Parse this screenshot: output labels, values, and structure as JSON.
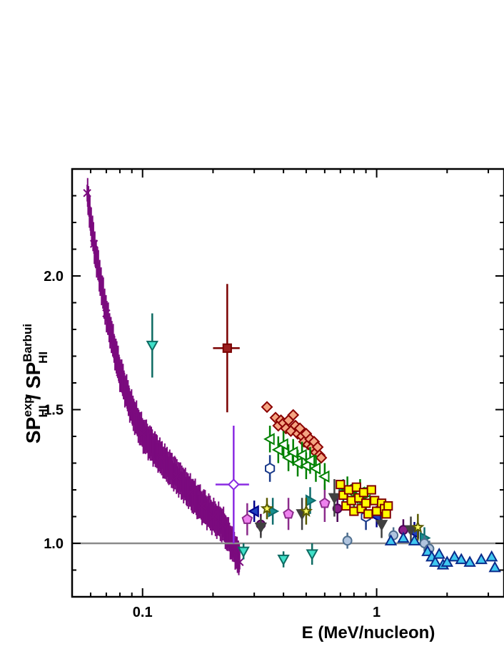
{
  "chart_data": {
    "type": "scatter",
    "x_scale": "log",
    "xlim": [
      0.05,
      3.5
    ],
    "ylim": [
      0.8,
      2.4
    ],
    "xlabel": "E (MeV/nucleon)",
    "ylabel": {
      "main": "SP",
      "num_sup": "exp",
      "num_sub": "HI",
      "sep": " / ",
      "den_main": "SP",
      "den_sup": "Barbui",
      "den_sub": "HI"
    },
    "x_ticks": [
      {
        "value": 0.1,
        "label": "0.1"
      },
      {
        "value": 1,
        "label": "1"
      }
    ],
    "y_ticks": [
      {
        "value": 1.0,
        "label": "1.0"
      },
      {
        "value": 1.5,
        "label": "1.5"
      },
      {
        "value": 2.0,
        "label": "2.0"
      }
    ],
    "reference_line": {
      "y": 1.0,
      "color": "#8a8a8a"
    },
    "dense_band": {
      "name": "cross-data",
      "color": "#7b0a7e",
      "marker": "x",
      "curve": [
        [
          0.058,
          2.31
        ],
        [
          0.062,
          2.12
        ],
        [
          0.07,
          1.86
        ],
        [
          0.08,
          1.64
        ],
        [
          0.09,
          1.5
        ],
        [
          0.1,
          1.41
        ],
        [
          0.12,
          1.32
        ],
        [
          0.14,
          1.25
        ],
        [
          0.16,
          1.19
        ],
        [
          0.18,
          1.14
        ],
        [
          0.2,
          1.1
        ],
        [
          0.22,
          1.07
        ],
        [
          0.25,
          0.97
        ],
        [
          0.26,
          0.93
        ]
      ],
      "err_half": 0.045
    },
    "series": [
      {
        "marker": "triangle-down",
        "color": "#0e6b63",
        "fill": "#3fe0c8",
        "points": [
          {
            "x": 0.11,
            "y": 1.74,
            "ey": 0.12
          },
          {
            "x": 0.27,
            "y": 0.97,
            "ey": 0.03
          },
          {
            "x": 0.4,
            "y": 0.94,
            "ey": 0.03
          },
          {
            "x": 0.53,
            "y": 0.96,
            "ey": 0.04
          }
        ]
      },
      {
        "marker": "square",
        "color": "#7a0000",
        "fill": "#9b1f1f",
        "points": [
          {
            "x": 0.23,
            "y": 1.73,
            "ey": 0.24,
            "ex": 0.03
          }
        ]
      },
      {
        "marker": "diamond",
        "color": "#8a2be2",
        "fill": "#ffffff",
        "points": [
          {
            "x": 0.245,
            "y": 1.22,
            "ey": 0.22,
            "ex": 0.04
          }
        ]
      },
      {
        "marker": "pentagon",
        "color": "#8b2b8b",
        "fill": "#ee82ee",
        "points": [
          {
            "x": 0.28,
            "y": 1.09,
            "ey": 0.06
          },
          {
            "x": 0.42,
            "y": 1.11,
            "ey": 0.06
          },
          {
            "x": 0.6,
            "y": 1.15,
            "ey": 0.07
          }
        ]
      },
      {
        "marker": "circle",
        "color": "#4d0058",
        "fill": "#8b1e8b",
        "points": [
          {
            "x": 0.32,
            "y": 1.07,
            "ey": 0.04
          },
          {
            "x": 0.68,
            "y": 1.13,
            "ey": 0.05
          },
          {
            "x": 1.3,
            "y": 1.05,
            "ey": 0.04
          }
        ]
      },
      {
        "marker": "hexagon",
        "color": "#1a3a8a",
        "fill": "#ffffff",
        "points": [
          {
            "x": 0.35,
            "y": 1.28,
            "ey": 0.05
          },
          {
            "x": 0.9,
            "y": 1.1,
            "ey": 0.05
          }
        ]
      },
      {
        "marker": "triangle-left",
        "color": "#00008b",
        "fill": "#1f3fbf",
        "points": [
          {
            "x": 0.3,
            "y": 1.12,
            "ey": 0.04
          },
          {
            "x": 1.0,
            "y": 1.1,
            "ey": 0.04
          },
          {
            "x": 1.45,
            "y": 1.04,
            "ey": 0.04
          }
        ]
      },
      {
        "marker": "triangle-down",
        "color": "#404040",
        "fill": "#404040",
        "points": [
          {
            "x": 0.32,
            "y": 1.06,
            "ey": 0.04
          },
          {
            "x": 0.48,
            "y": 1.11,
            "ey": 0.06
          },
          {
            "x": 0.66,
            "y": 1.17,
            "ey": 0.07
          },
          {
            "x": 1.05,
            "y": 1.07,
            "ey": 0.05
          },
          {
            "x": 1.4,
            "y": 1.05,
            "ey": 0.05
          }
        ]
      },
      {
        "marker": "triangle-right",
        "color": "#0d6b6b",
        "fill": "#168f8f",
        "points": [
          {
            "x": 0.36,
            "y": 1.12,
            "ey": 0.05
          },
          {
            "x": 0.52,
            "y": 1.16,
            "ey": 0.05
          },
          {
            "x": 0.72,
            "y": 1.19,
            "ey": 0.05
          },
          {
            "x": 1.6,
            "y": 1.02,
            "ey": 0.04
          }
        ]
      },
      {
        "marker": "star",
        "color": "#5a5a00",
        "fill": "#ffff66",
        "points": [
          {
            "x": 0.34,
            "y": 1.13,
            "ey": 0.04
          },
          {
            "x": 0.5,
            "y": 1.12,
            "ey": 0.05
          },
          {
            "x": 1.5,
            "y": 1.06,
            "ey": 0.05
          }
        ]
      },
      {
        "marker": "diamond",
        "color": "#8b0000",
        "fill": "#f4a582",
        "points": [
          {
            "x": 0.34,
            "y": 1.51
          },
          {
            "x": 0.37,
            "y": 1.47
          },
          {
            "x": 0.38,
            "y": 1.44
          },
          {
            "x": 0.39,
            "y": 1.46
          },
          {
            "x": 0.4,
            "y": 1.45
          },
          {
            "x": 0.41,
            "y": 1.43
          },
          {
            "x": 0.42,
            "y": 1.46
          },
          {
            "x": 0.43,
            "y": 1.42
          },
          {
            "x": 0.44,
            "y": 1.48
          },
          {
            "x": 0.45,
            "y": 1.44
          },
          {
            "x": 0.46,
            "y": 1.41
          },
          {
            "x": 0.47,
            "y": 1.43
          },
          {
            "x": 0.48,
            "y": 1.4
          },
          {
            "x": 0.49,
            "y": 1.38
          },
          {
            "x": 0.5,
            "y": 1.41
          },
          {
            "x": 0.51,
            "y": 1.37
          },
          {
            "x": 0.52,
            "y": 1.39
          },
          {
            "x": 0.53,
            "y": 1.36
          },
          {
            "x": 0.54,
            "y": 1.38
          },
          {
            "x": 0.55,
            "y": 1.34
          },
          {
            "x": 0.56,
            "y": 1.36
          },
          {
            "x": 0.57,
            "y": 1.33
          },
          {
            "x": 0.58,
            "y": 1.32
          }
        ]
      },
      {
        "marker": "triangle-left",
        "color": "#008000",
        "fill": "#ffffff",
        "points": [
          {
            "x": 0.35,
            "y": 1.39,
            "ey": 0.05
          },
          {
            "x": 0.38,
            "y": 1.35,
            "ey": 0.05
          },
          {
            "x": 0.4,
            "y": 1.37,
            "ey": 0.05
          },
          {
            "x": 0.42,
            "y": 1.32,
            "ey": 0.05
          },
          {
            "x": 0.44,
            "y": 1.34,
            "ey": 0.05
          },
          {
            "x": 0.46,
            "y": 1.3,
            "ey": 0.05
          },
          {
            "x": 0.48,
            "y": 1.33,
            "ey": 0.05
          },
          {
            "x": 0.5,
            "y": 1.29,
            "ey": 0.05
          },
          {
            "x": 0.52,
            "y": 1.31,
            "ey": 0.05
          },
          {
            "x": 0.55,
            "y": 1.28,
            "ey": 0.05
          },
          {
            "x": 0.6,
            "y": 1.25,
            "ey": 0.05
          },
          {
            "x": 0.75,
            "y": 1.2,
            "ey": 0.05
          },
          {
            "x": 0.8,
            "y": 1.17,
            "ey": 0.05
          },
          {
            "x": 0.85,
            "y": 1.19,
            "ey": 0.05
          },
          {
            "x": 0.9,
            "y": 1.16,
            "ey": 0.05
          }
        ]
      },
      {
        "marker": "square",
        "color": "#800000",
        "fill": "#ffff00",
        "points": [
          {
            "x": 0.7,
            "y": 1.22
          },
          {
            "x": 0.72,
            "y": 1.18
          },
          {
            "x": 0.74,
            "y": 1.14
          },
          {
            "x": 0.76,
            "y": 1.2
          },
          {
            "x": 0.78,
            "y": 1.16
          },
          {
            "x": 0.8,
            "y": 1.12
          },
          {
            "x": 0.82,
            "y": 1.21
          },
          {
            "x": 0.84,
            "y": 1.17
          },
          {
            "x": 0.86,
            "y": 1.13
          },
          {
            "x": 0.88,
            "y": 1.19
          },
          {
            "x": 0.9,
            "y": 1.15
          },
          {
            "x": 0.92,
            "y": 1.11
          },
          {
            "x": 0.95,
            "y": 1.2
          },
          {
            "x": 0.98,
            "y": 1.16
          },
          {
            "x": 1.0,
            "y": 1.12
          },
          {
            "x": 1.05,
            "y": 1.15
          },
          {
            "x": 1.08,
            "y": 1.13
          },
          {
            "x": 1.1,
            "y": 1.11
          },
          {
            "x": 1.12,
            "y": 1.14
          }
        ]
      },
      {
        "marker": "circle",
        "color": "#4f6f8f",
        "fill": "#b0c4de",
        "points": [
          {
            "x": 0.75,
            "y": 1.01,
            "ey": 0.03
          },
          {
            "x": 1.18,
            "y": 1.03,
            "ey": 0.03
          },
          {
            "x": 1.6,
            "y": 1.0,
            "ey": 0.03
          },
          {
            "x": 1.68,
            "y": 0.98,
            "ey": 0.03
          }
        ]
      },
      {
        "marker": "triangle-up",
        "color": "#0a2a8a",
        "fill": "#40c8f0",
        "points": [
          {
            "x": 1.15,
            "y": 1.01
          },
          {
            "x": 1.3,
            "y": 1.02
          },
          {
            "x": 1.45,
            "y": 1.01
          },
          {
            "x": 1.65,
            "y": 0.97
          },
          {
            "x": 1.72,
            "y": 0.95
          },
          {
            "x": 1.78,
            "y": 0.93
          },
          {
            "x": 1.85,
            "y": 0.96
          },
          {
            "x": 1.92,
            "y": 0.92
          },
          {
            "x": 2.0,
            "y": 0.93
          },
          {
            "x": 2.15,
            "y": 0.95
          },
          {
            "x": 2.3,
            "y": 0.94
          },
          {
            "x": 2.5,
            "y": 0.93
          },
          {
            "x": 2.8,
            "y": 0.94
          },
          {
            "x": 3.1,
            "y": 0.95
          },
          {
            "x": 3.2,
            "y": 0.91
          }
        ]
      }
    ]
  }
}
